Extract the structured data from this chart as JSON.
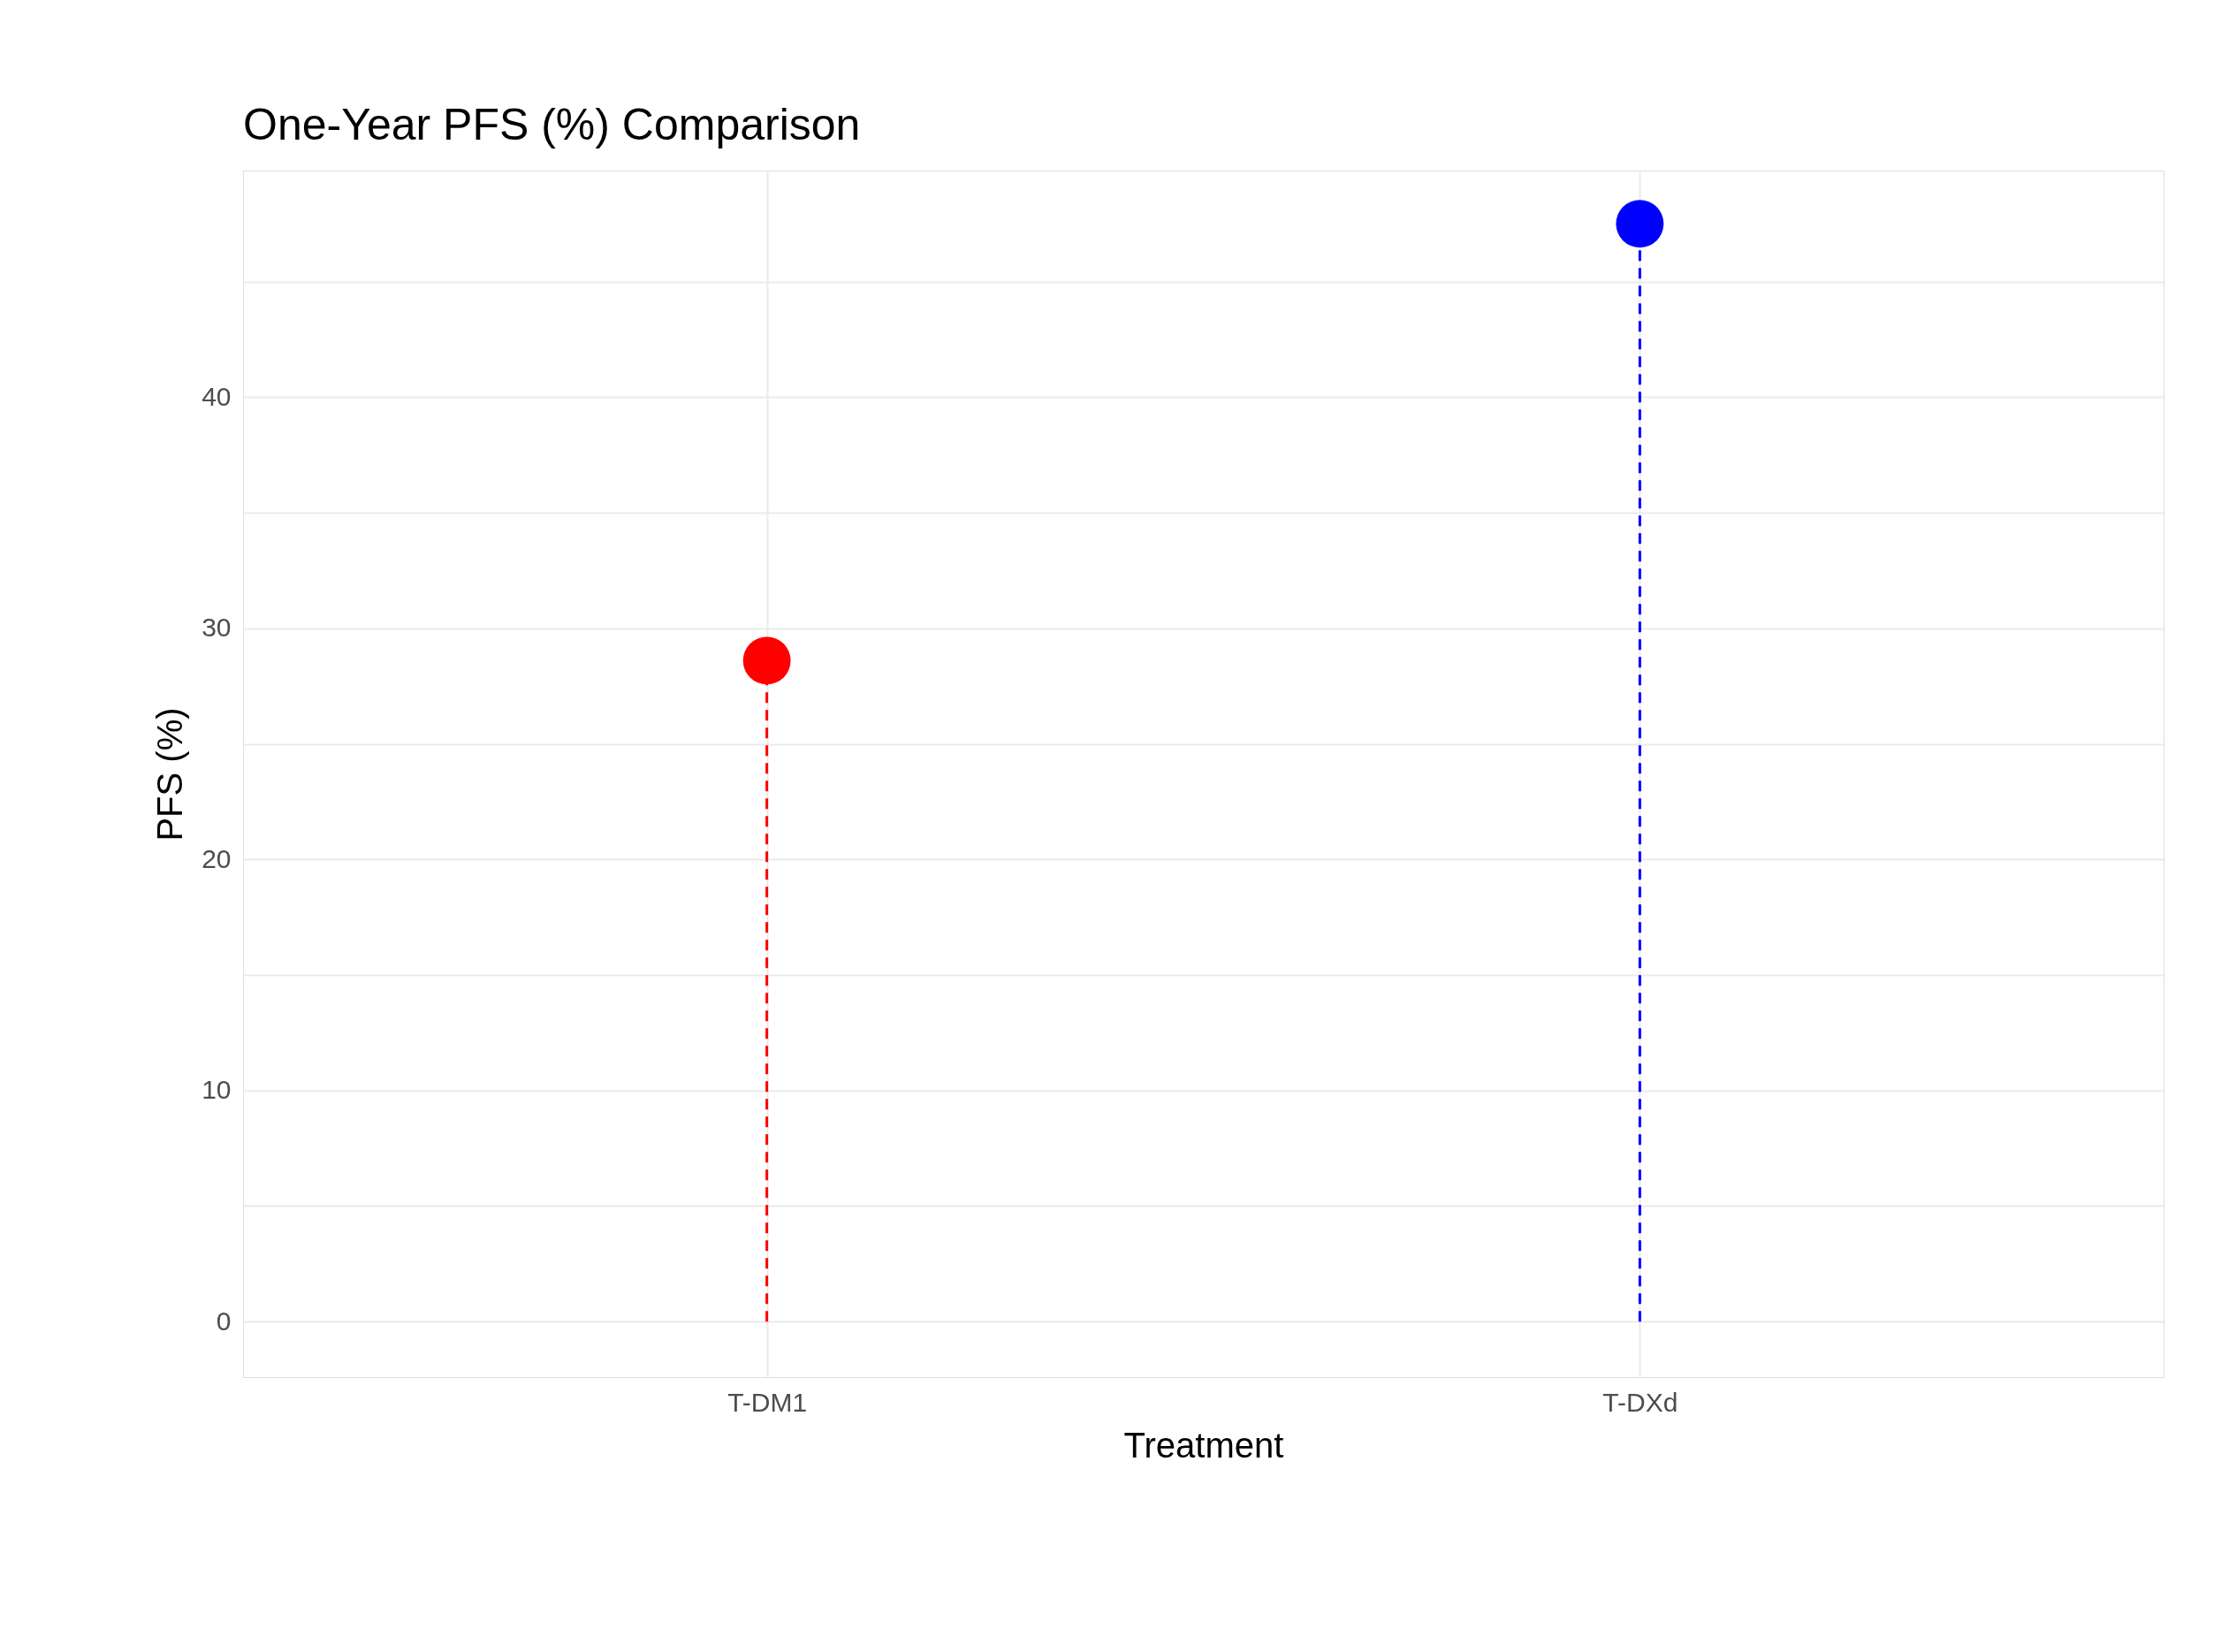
{
  "chart_data": {
    "type": "lollipop",
    "title": "One-Year PFS (%) Comparison",
    "xlabel": "Treatment",
    "ylabel": "PFS (%)",
    "categories": [
      "T-DM1",
      "T-DXd"
    ],
    "values": [
      28.6,
      47.5
    ],
    "colors": [
      "#ff0000",
      "#0000ff"
    ],
    "ylim": [
      -2.4,
      49.8
    ],
    "yticks": [
      0,
      {
        "value": 5,
        "label": null
      },
      10,
      {
        "value": 15,
        "label": null
      },
      20,
      {
        "value": 25,
        "label": null
      },
      30,
      {
        "value": 35,
        "label": null
      },
      40,
      {
        "value": 45,
        "label": null
      }
    ],
    "grid": true,
    "marker": "circle",
    "line_style": "dashed"
  }
}
